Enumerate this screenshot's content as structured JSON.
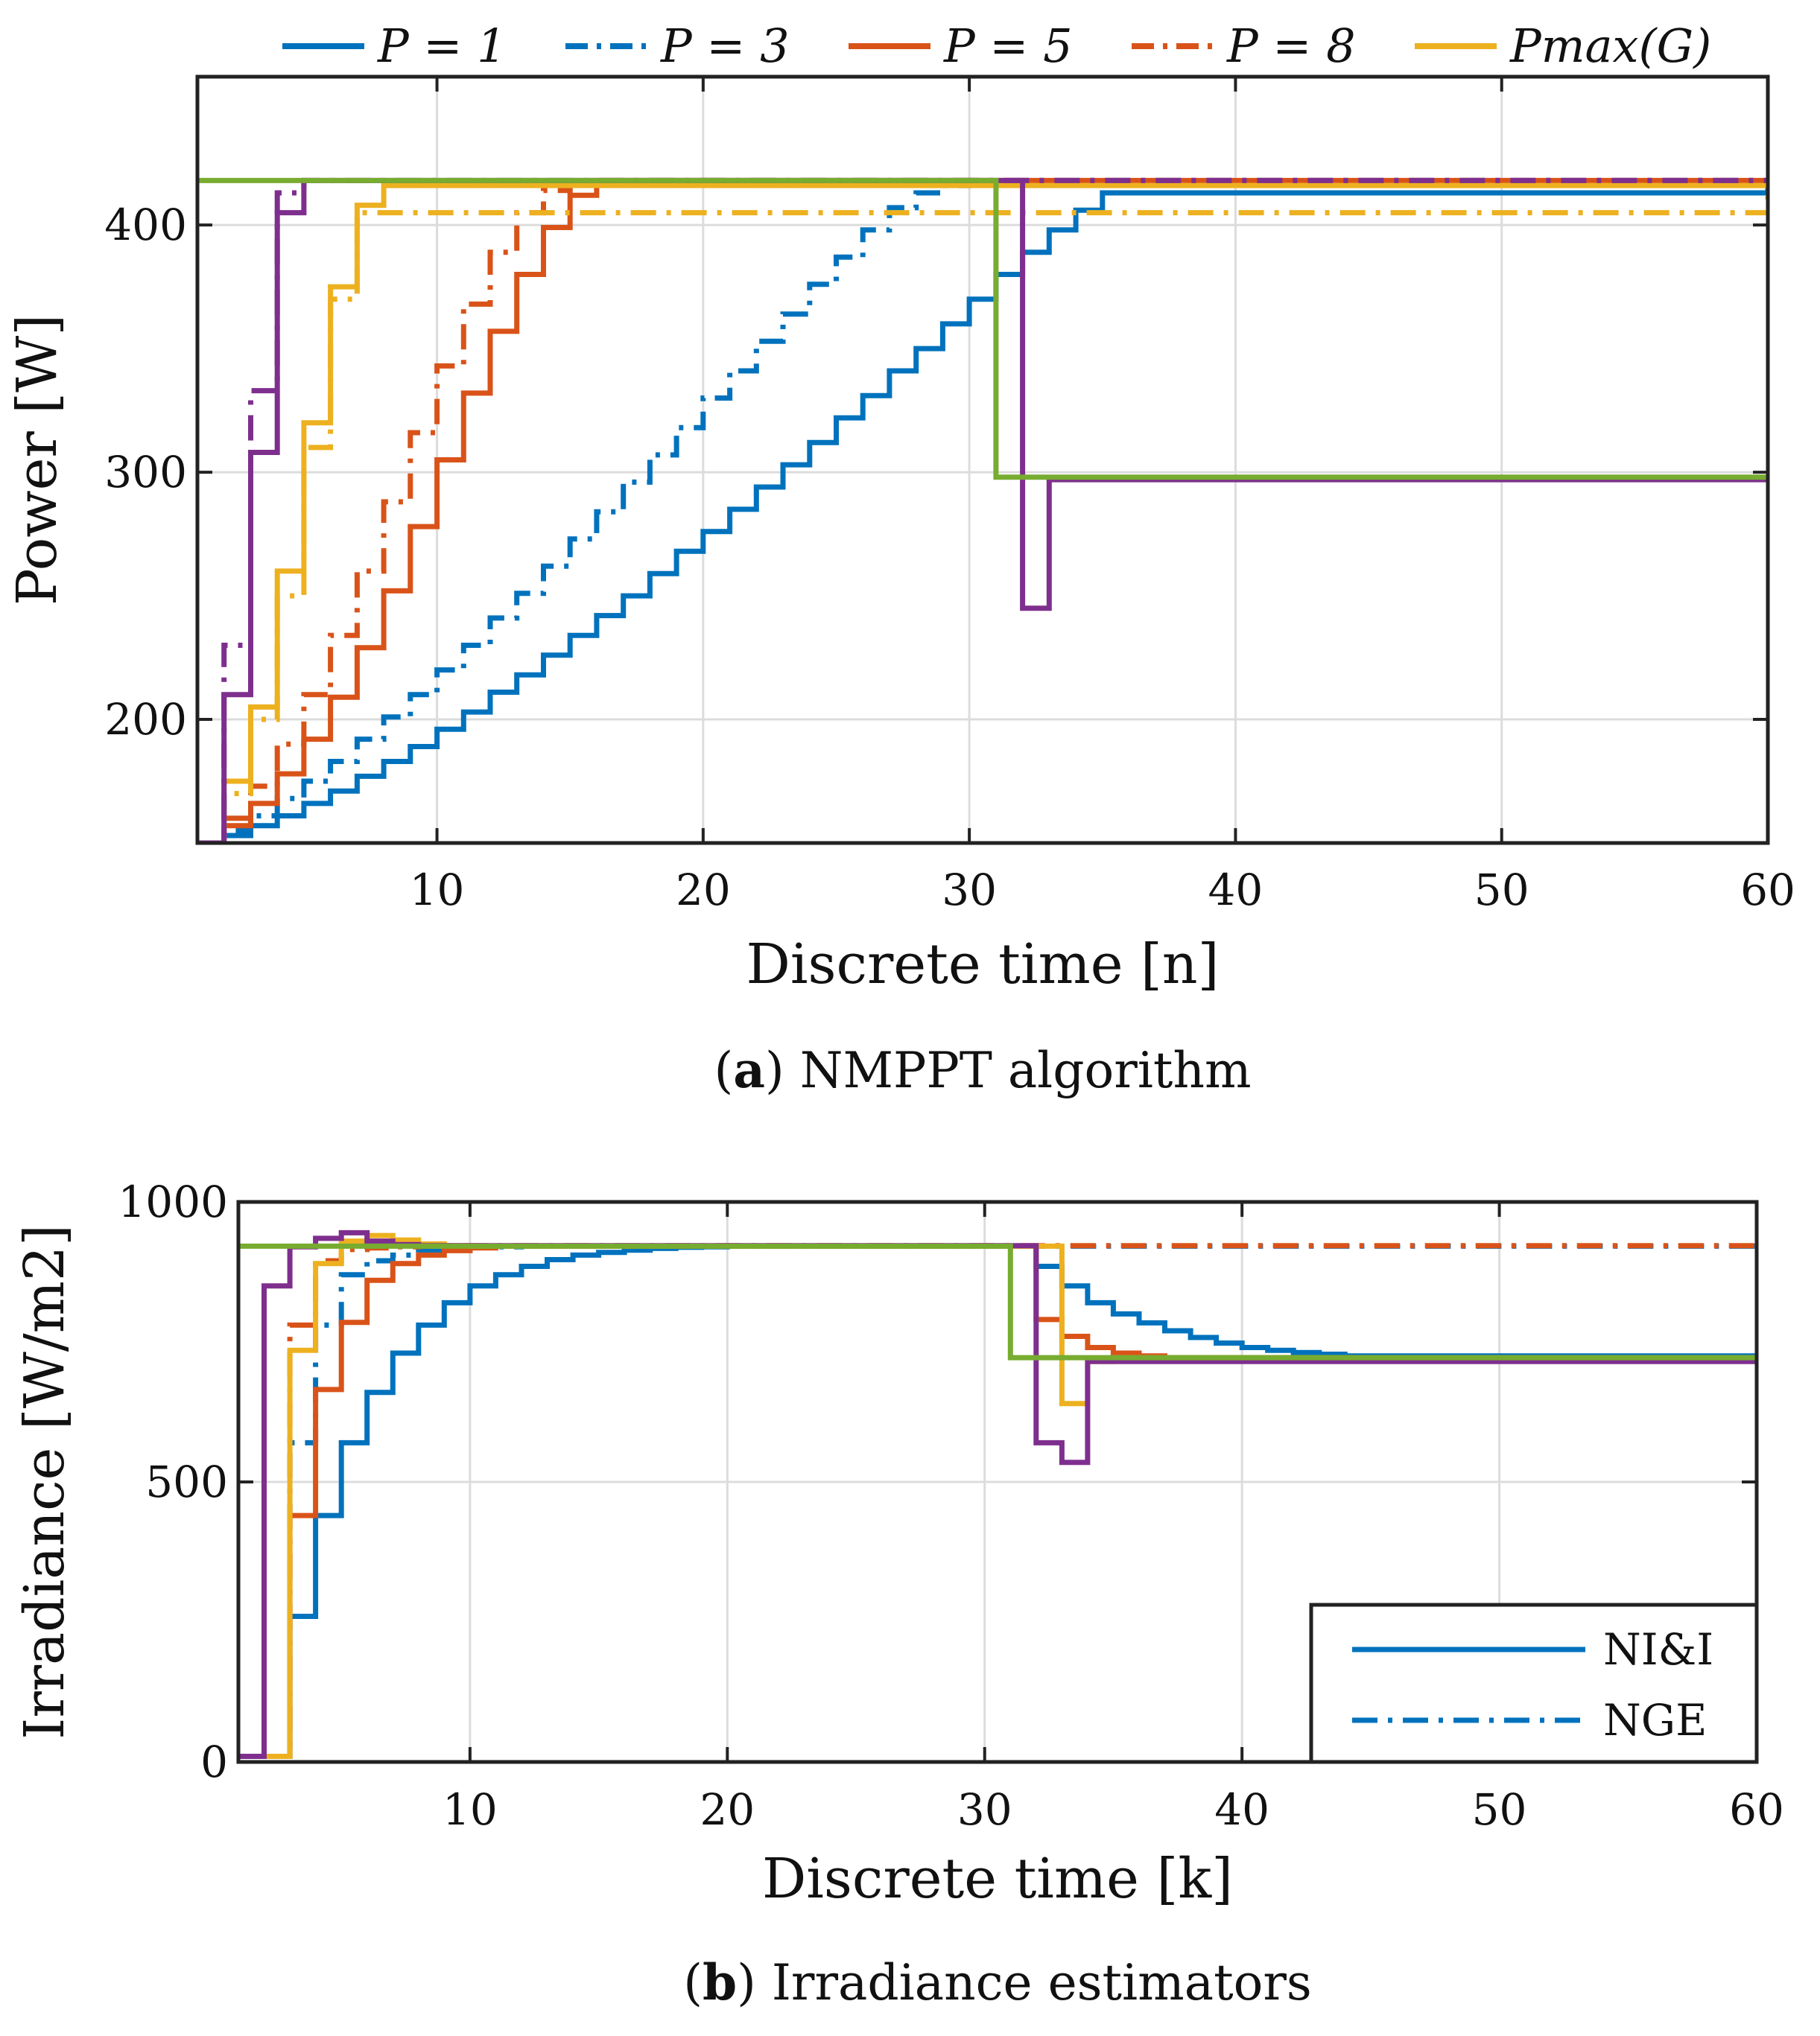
{
  "chart_data": [
    {
      "type": "line",
      "subtype": "step",
      "caption_bold": "a",
      "caption_text": "NMPPT algorithm",
      "xlabel": "Discrete time [n]",
      "ylabel": "Power [W]",
      "xlim": [
        1,
        60
      ],
      "ylim": [
        150,
        460
      ],
      "xticks": [
        10,
        20,
        30,
        40,
        50,
        60
      ],
      "yticks": [
        200,
        300,
        400
      ],
      "grid": true,
      "legend_position": "top-outside",
      "legend": [
        {
          "label": "P = 1",
          "color": "#0072BD",
          "dash": "solid"
        },
        {
          "label": "P = 3",
          "color": "#0072BD",
          "dash": "dashdot"
        },
        {
          "label": "P = 5",
          "color": "#D95319",
          "dash": "solid"
        },
        {
          "label": "P = 8",
          "color": "#D95319",
          "dash": "dashdot"
        },
        {
          "label": "Pmax(G)",
          "color": "#EDB120",
          "dash": "solid"
        }
      ],
      "series": [
        {
          "color": "#0072BD",
          "dash": "solid",
          "x": [
            1,
            2,
            3,
            4,
            5,
            6,
            7,
            8,
            9,
            10,
            11,
            12,
            13,
            14,
            15,
            16,
            17,
            18,
            19,
            20,
            21,
            22,
            23,
            24,
            25,
            26,
            27,
            28,
            29,
            30,
            31,
            32,
            33,
            34,
            35,
            60
          ],
          "y": [
            150,
            153,
            157,
            161,
            166,
            171,
            177,
            183,
            189,
            196,
            203,
            211,
            218,
            226,
            234,
            242,
            250,
            259,
            268,
            276,
            285,
            294,
            303,
            312,
            322,
            331,
            341,
            350,
            360,
            370,
            380,
            389,
            398,
            406,
            413,
            418
          ]
        },
        {
          "color": "#0072BD",
          "dash": "dashdot",
          "x": [
            1,
            2,
            3,
            4,
            5,
            6,
            7,
            8,
            9,
            10,
            11,
            12,
            13,
            14,
            15,
            16,
            17,
            18,
            19,
            20,
            21,
            22,
            23,
            24,
            25,
            26,
            27,
            28,
            29,
            30,
            31,
            32,
            33,
            34,
            35,
            60
          ],
          "y": [
            150,
            155,
            161,
            168,
            175,
            183,
            192,
            201,
            210,
            220,
            230,
            241,
            251,
            262,
            273,
            284,
            296,
            307,
            318,
            330,
            341,
            353,
            364,
            376,
            387,
            398,
            407,
            413,
            416,
            418,
            418,
            418,
            418,
            418,
            418,
            418
          ]
        },
        {
          "color": "#D95319",
          "dash": "solid",
          "x": [
            1,
            2,
            3,
            4,
            5,
            6,
            7,
            8,
            9,
            10,
            11,
            12,
            13,
            14,
            15,
            16,
            17,
            60
          ],
          "y": [
            150,
            157,
            166,
            178,
            192,
            209,
            229,
            252,
            278,
            305,
            332,
            357,
            380,
            399,
            412,
            417,
            418,
            418
          ]
        },
        {
          "color": "#D95319",
          "dash": "dashdot",
          "x": [
            1,
            2,
            3,
            4,
            5,
            6,
            7,
            8,
            9,
            10,
            11,
            12,
            13,
            14,
            15,
            16,
            60
          ],
          "y": [
            150,
            160,
            173,
            190,
            210,
            234,
            260,
            288,
            316,
            343,
            368,
            389,
            405,
            414,
            417,
            418,
            418
          ]
        },
        {
          "color": "#EDB120",
          "dash": "solid",
          "x": [
            1,
            2,
            3,
            4,
            5,
            6,
            7,
            8,
            60
          ],
          "y": [
            150,
            175,
            205,
            260,
            320,
            375,
            408,
            416,
            418
          ]
        },
        {
          "color": "#EDB120",
          "dash": "dashdot",
          "x": [
            1,
            2,
            3,
            4,
            5,
            6,
            7,
            60
          ],
          "y": [
            150,
            170,
            200,
            250,
            310,
            370,
            405,
            418
          ]
        },
        {
          "color": "#7E2F8E",
          "dash": "solid",
          "x": [
            1,
            2,
            3,
            4,
            5,
            31,
            32,
            33,
            60
          ],
          "y": [
            150,
            210,
            308,
            405,
            418,
            418,
            245,
            297,
            298
          ]
        },
        {
          "color": "#7E2F8E",
          "dash": "dashdot",
          "x": [
            1,
            2,
            3,
            4,
            5,
            60
          ],
          "y": [
            150,
            230,
            333,
            413,
            418,
            418
          ]
        },
        {
          "color": "#77AC30",
          "dash": "solid",
          "x": [
            1,
            31,
            60
          ],
          "y": [
            418,
            298,
            298
          ]
        }
      ]
    },
    {
      "type": "line",
      "subtype": "step",
      "caption_bold": "b",
      "caption_text": "Irradiance estimators",
      "xlabel": "Discrete time [k]",
      "ylabel": "Irradiance [W/m2]",
      "xlim": [
        1,
        60
      ],
      "ylim": [
        0,
        1000
      ],
      "xticks": [
        10,
        20,
        30,
        40,
        50,
        60
      ],
      "yticks": [
        0,
        500,
        1000
      ],
      "grid": true,
      "legend_position": "bottom-right",
      "legend": [
        {
          "label": "NI&I",
          "color": "#0072BD",
          "dash": "solid"
        },
        {
          "label": "NGE",
          "color": "#0072BD",
          "dash": "dashdot"
        }
      ],
      "series": [
        {
          "color": "#0072BD",
          "dash": "solid",
          "x": [
            2,
            3,
            4,
            5,
            6,
            7,
            8,
            9,
            10,
            11,
            12,
            13,
            14,
            15,
            16,
            17,
            18,
            19,
            20,
            31,
            32,
            33,
            34,
            35,
            36,
            37,
            38,
            39,
            40,
            41,
            42,
            43,
            44,
            60
          ],
          "y": [
            10,
            260,
            440,
            570,
            660,
            730,
            780,
            820,
            850,
            870,
            885,
            897,
            905,
            910,
            914,
            917,
            919,
            920,
            921,
            921,
            885,
            850,
            820,
            800,
            784,
            770,
            758,
            748,
            740,
            735,
            731,
            728,
            725,
            722
          ]
        },
        {
          "color": "#0072BD",
          "dash": "dashdot",
          "x": [
            2,
            3,
            4,
            5,
            6,
            7,
            8,
            9,
            10,
            11,
            12,
            60
          ],
          "y": [
            10,
            570,
            780,
            870,
            895,
            905,
            912,
            916,
            919,
            920,
            921,
            921
          ]
        },
        {
          "color": "#D95319",
          "dash": "solid",
          "x": [
            2,
            3,
            4,
            5,
            6,
            7,
            8,
            9,
            10,
            11,
            31,
            32,
            33,
            34,
            35,
            36,
            37,
            60
          ],
          "y": [
            10,
            440,
            665,
            785,
            860,
            890,
            905,
            913,
            918,
            921,
            921,
            790,
            760,
            740,
            730,
            725,
            722,
            722
          ]
        },
        {
          "color": "#D95319",
          "dash": "dashdot",
          "x": [
            2,
            3,
            4,
            5,
            6,
            7,
            8,
            9,
            60
          ],
          "y": [
            10,
            780,
            895,
            915,
            918,
            920,
            921,
            922,
            922
          ]
        },
        {
          "color": "#EDB120",
          "dash": "solid",
          "x": [
            2,
            3,
            4,
            5,
            6,
            7,
            8,
            9,
            10,
            32,
            33,
            34,
            35,
            60
          ],
          "y": [
            10,
            735,
            890,
            930,
            940,
            932,
            925,
            922,
            921,
            921,
            640,
            715,
            722,
            722
          ]
        },
        {
          "color": "#7E2F8E",
          "dash": "solid",
          "x": [
            1,
            2,
            3,
            4,
            5,
            6,
            7,
            8,
            31,
            32,
            33,
            34,
            60
          ],
          "y": [
            10,
            850,
            920,
            935,
            945,
            930,
            924,
            922,
            922,
            570,
            535,
            715,
            722
          ]
        },
        {
          "color": "#77AC30",
          "dash": "solid",
          "x": [
            1,
            31,
            60
          ],
          "y": [
            921,
            722,
            722
          ]
        }
      ]
    }
  ]
}
